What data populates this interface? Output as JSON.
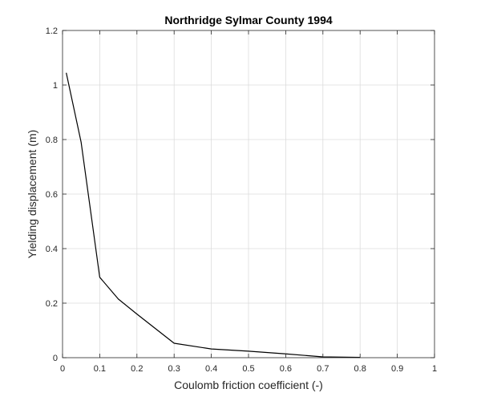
{
  "chart_data": {
    "type": "line",
    "title": "Northridge Sylmar County 1994",
    "xlabel": "Coulomb friction coefficient (-)",
    "ylabel": "Yielding displacement (m)",
    "xlim": [
      0,
      1
    ],
    "ylim": [
      0,
      1.2
    ],
    "xticks": [
      0,
      0.1,
      0.2,
      0.3,
      0.4,
      0.5,
      0.6,
      0.7,
      0.8,
      0.9,
      1
    ],
    "xtick_labels": [
      "0",
      "0.1",
      "0.2",
      "0.3",
      "0.4",
      "0.5",
      "0.6",
      "0.7",
      "0.8",
      "0.9",
      "1"
    ],
    "yticks": [
      0,
      0.2,
      0.4,
      0.6,
      0.8,
      1,
      1.2
    ],
    "ytick_labels": [
      "0",
      "0.2",
      "0.4",
      "0.6",
      "0.8",
      "1",
      "1.2"
    ],
    "grid": true,
    "box": true,
    "line_color": "#000000",
    "grid_color": "#dcdcdc",
    "axis_color": "#262626",
    "series": [
      {
        "x": [
          0.01,
          0.05,
          0.1,
          0.15,
          0.2,
          0.3,
          0.4,
          0.5,
          0.6,
          0.7,
          0.8
        ],
        "y": [
          1.045,
          0.79,
          0.295,
          0.215,
          0.16,
          0.053,
          0.032,
          0.024,
          0.014,
          0.003,
          0.001
        ]
      }
    ]
  }
}
